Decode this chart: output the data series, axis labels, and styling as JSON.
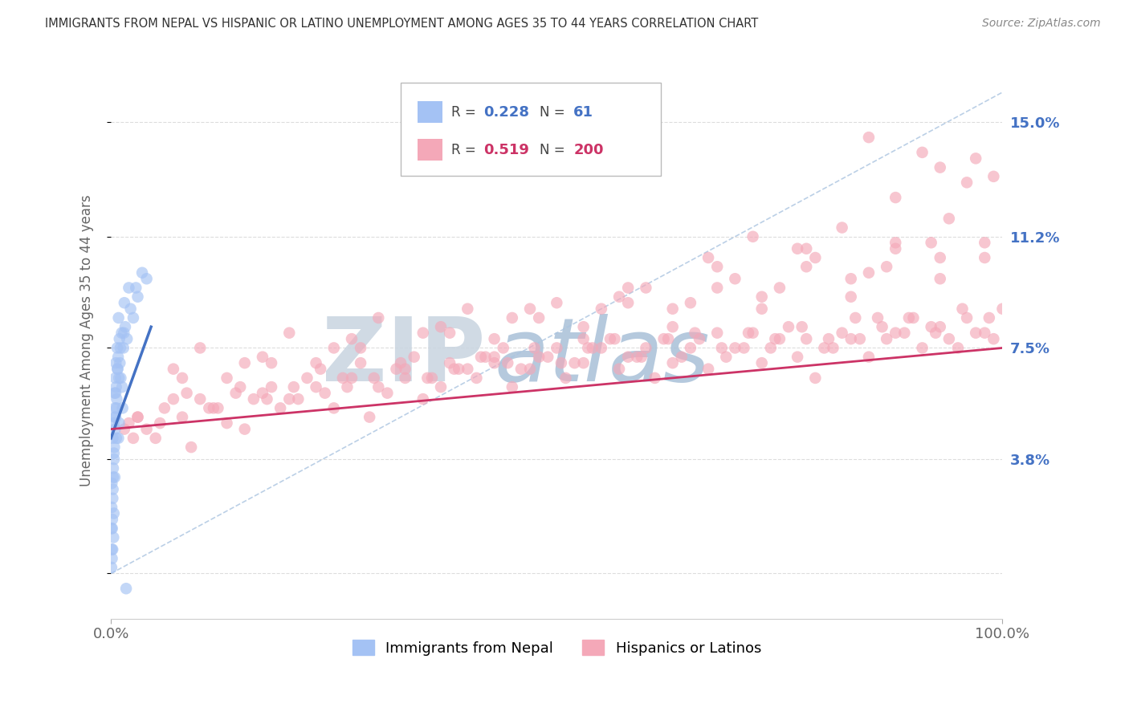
{
  "title": "IMMIGRANTS FROM NEPAL VS HISPANIC OR LATINO UNEMPLOYMENT AMONG AGES 35 TO 44 YEARS CORRELATION CHART",
  "source": "Source: ZipAtlas.com",
  "ylabel": "Unemployment Among Ages 35 to 44 years",
  "xlim": [
    0,
    100
  ],
  "ylim": [
    -1.5,
    17
  ],
  "yticks": [
    0,
    3.8,
    7.5,
    11.2,
    15.0
  ],
  "ytick_labels": [
    "",
    "3.8%",
    "7.5%",
    "11.2%",
    "15.0%"
  ],
  "xtick_labels": [
    "0.0%",
    "100.0%"
  ],
  "color_blue": "#a4c2f4",
  "color_pink": "#f4a8b8",
  "line_blue": "#4472c4",
  "line_pink": "#cc3366",
  "diag_color": "#aac4e0",
  "background": "#ffffff",
  "grid_color": "#dddddd",
  "watermark_zip": "ZIP",
  "watermark_atlas": "atlas",
  "watermark_zip_color": "#c8d8e8",
  "watermark_atlas_color": "#b8cce4",
  "nepal_x": [
    0.05,
    0.08,
    0.1,
    0.12,
    0.15,
    0.18,
    0.2,
    0.22,
    0.25,
    0.28,
    0.3,
    0.32,
    0.35,
    0.38,
    0.4,
    0.42,
    0.45,
    0.48,
    0.5,
    0.52,
    0.55,
    0.58,
    0.6,
    0.65,
    0.7,
    0.75,
    0.8,
    0.85,
    0.9,
    0.95,
    1.0,
    1.1,
    1.2,
    1.3,
    1.4,
    1.5,
    1.6,
    1.8,
    2.0,
    2.2,
    2.5,
    3.0,
    3.5,
    4.0,
    0.06,
    0.09,
    0.14,
    0.19,
    0.24,
    0.33,
    0.43,
    0.53,
    0.63,
    0.73,
    0.83,
    0.93,
    1.05,
    1.25,
    1.45,
    2.8,
    1.7
  ],
  "nepal_y": [
    1.5,
    2.2,
    3.0,
    0.5,
    1.8,
    0.8,
    4.5,
    2.8,
    3.5,
    1.2,
    5.0,
    2.0,
    3.8,
    4.2,
    6.0,
    3.2,
    5.5,
    4.8,
    6.5,
    5.2,
    7.0,
    6.2,
    4.5,
    5.8,
    7.5,
    6.8,
    7.2,
    8.5,
    6.5,
    7.8,
    7.0,
    6.5,
    8.0,
    5.5,
    7.5,
    9.0,
    8.2,
    7.8,
    9.5,
    8.8,
    8.5,
    9.2,
    10.0,
    9.8,
    0.2,
    0.8,
    1.5,
    2.5,
    3.2,
    4.0,
    5.2,
    6.0,
    5.5,
    6.8,
    4.5,
    5.0,
    7.5,
    6.2,
    8.0,
    9.5,
    -0.5
  ],
  "hispanic_x": [
    1.5,
    3.0,
    5.0,
    7.0,
    9.0,
    11.0,
    13.0,
    15.0,
    17.0,
    19.0,
    21.0,
    23.0,
    25.0,
    27.0,
    29.0,
    31.0,
    33.0,
    35.0,
    37.0,
    39.0,
    41.0,
    43.0,
    45.0,
    47.0,
    49.0,
    51.0,
    53.0,
    55.0,
    57.0,
    59.0,
    61.0,
    63.0,
    65.0,
    67.0,
    69.0,
    71.0,
    73.0,
    75.0,
    77.0,
    79.0,
    81.0,
    83.0,
    85.0,
    87.0,
    89.0,
    91.0,
    93.0,
    95.0,
    97.0,
    99.0,
    2.0,
    4.0,
    6.0,
    8.0,
    10.0,
    12.0,
    14.0,
    16.0,
    18.0,
    20.0,
    22.0,
    24.0,
    26.0,
    28.0,
    30.0,
    32.0,
    34.0,
    36.0,
    38.0,
    40.0,
    42.0,
    44.0,
    46.0,
    48.0,
    50.0,
    52.0,
    54.0,
    56.0,
    58.0,
    60.0,
    62.0,
    64.0,
    66.0,
    68.0,
    70.0,
    72.0,
    74.0,
    76.0,
    78.0,
    80.0,
    82.0,
    84.0,
    86.0,
    88.0,
    90.0,
    92.0,
    94.0,
    96.0,
    98.0,
    100.0,
    2.5,
    5.5,
    8.5,
    11.5,
    14.5,
    17.5,
    20.5,
    23.5,
    26.5,
    29.5,
    32.5,
    35.5,
    38.5,
    41.5,
    44.5,
    47.5,
    50.5,
    53.5,
    56.5,
    59.5,
    62.5,
    65.5,
    68.5,
    71.5,
    74.5,
    77.5,
    80.5,
    83.5,
    86.5,
    89.5,
    92.5,
    95.5,
    98.5,
    85.0,
    91.0,
    93.0,
    96.0,
    88.0,
    79.0,
    70.0,
    60.0,
    50.0,
    40.0,
    30.0,
    20.0,
    10.0,
    45.0,
    55.0,
    65.0,
    75.0,
    85.0,
    15.0,
    25.0,
    35.0,
    92.0,
    97.0,
    99.0,
    94.0,
    87.0,
    82.0,
    77.0,
    72.0,
    67.0,
    57.0,
    47.0,
    37.0,
    27.0,
    17.0,
    7.0,
    3.0,
    13.0,
    23.0,
    43.0,
    53.0,
    63.0,
    73.0,
    83.0,
    93.0,
    98.0,
    88.0,
    78.0,
    68.0,
    58.0,
    48.0,
    38.0,
    28.0,
    18.0,
    8.0,
    33.0,
    43.0,
    53.0,
    63.0,
    73.0,
    83.0,
    93.0,
    98.0,
    88.0,
    78.0,
    68.0,
    58.0
  ],
  "hispanic_y": [
    4.8,
    5.2,
    4.5,
    5.8,
    4.2,
    5.5,
    5.0,
    4.8,
    6.0,
    5.5,
    5.8,
    6.2,
    5.5,
    6.5,
    5.2,
    6.0,
    6.5,
    5.8,
    6.2,
    6.8,
    6.5,
    7.0,
    6.2,
    6.8,
    7.2,
    6.5,
    7.0,
    7.5,
    6.8,
    7.2,
    6.5,
    7.0,
    7.5,
    6.8,
    7.2,
    7.5,
    7.0,
    7.8,
    7.2,
    6.5,
    7.5,
    7.8,
    7.2,
    7.8,
    8.0,
    7.5,
    8.2,
    7.5,
    8.0,
    7.8,
    5.0,
    4.8,
    5.5,
    5.2,
    5.8,
    5.5,
    6.0,
    5.8,
    6.2,
    5.8,
    6.5,
    6.0,
    6.5,
    7.0,
    6.2,
    6.8,
    7.2,
    6.5,
    7.0,
    6.8,
    7.2,
    7.5,
    6.8,
    7.2,
    7.5,
    7.0,
    7.5,
    7.8,
    7.2,
    7.5,
    7.8,
    7.2,
    7.8,
    8.0,
    7.5,
    8.0,
    7.5,
    8.2,
    7.8,
    7.5,
    8.0,
    7.8,
    8.5,
    8.0,
    8.5,
    8.2,
    7.8,
    8.5,
    8.0,
    8.8,
    4.5,
    5.0,
    6.0,
    5.5,
    6.2,
    5.8,
    6.2,
    6.8,
    6.2,
    6.5,
    7.0,
    6.5,
    6.8,
    7.2,
    7.0,
    7.5,
    7.0,
    7.5,
    7.8,
    7.2,
    7.8,
    8.0,
    7.5,
    8.0,
    7.8,
    8.2,
    7.8,
    8.5,
    8.2,
    8.5,
    8.0,
    8.8,
    8.5,
    14.5,
    14.0,
    13.5,
    13.0,
    12.5,
    10.5,
    9.8,
    9.5,
    9.0,
    8.8,
    8.5,
    8.0,
    7.5,
    8.5,
    8.8,
    9.0,
    9.5,
    10.0,
    7.0,
    7.5,
    8.0,
    11.0,
    13.8,
    13.2,
    11.8,
    10.2,
    11.5,
    10.8,
    11.2,
    10.5,
    9.2,
    8.8,
    8.2,
    7.8,
    7.2,
    6.8,
    5.2,
    6.5,
    7.0,
    7.8,
    8.2,
    8.8,
    9.2,
    9.8,
    10.5,
    11.0,
    10.8,
    10.2,
    9.5,
    9.0,
    8.5,
    8.0,
    7.5,
    7.0,
    6.5,
    6.8,
    7.2,
    7.8,
    8.2,
    8.8,
    9.2,
    9.8,
    10.5,
    11.0,
    10.8,
    10.2,
    9.5
  ],
  "nepal_trend_x": [
    0.0,
    4.5
  ],
  "nepal_trend_y": [
    4.5,
    8.2
  ],
  "hisp_trend_x": [
    0.0,
    100.0
  ],
  "hisp_trend_y": [
    4.8,
    7.5
  ]
}
